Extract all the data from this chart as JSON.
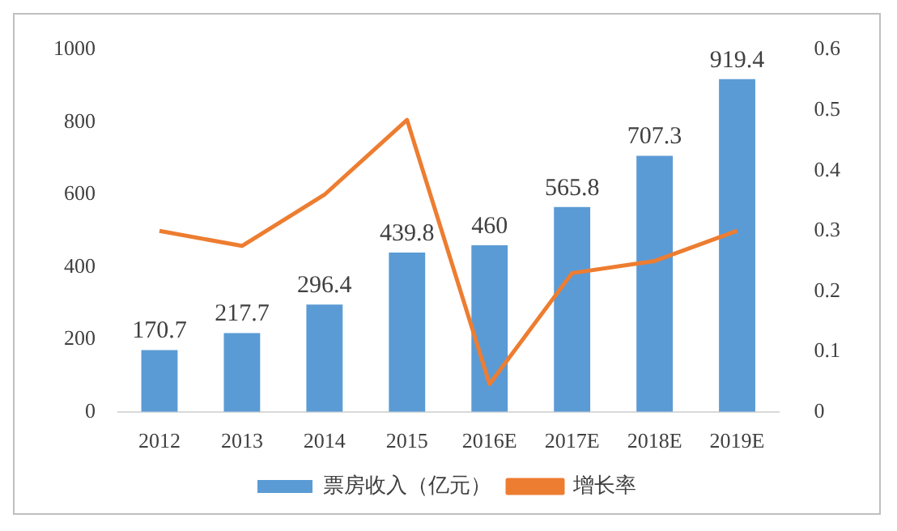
{
  "chart_data": {
    "type": "bar",
    "categories": [
      "2012",
      "2013",
      "2014",
      "2015",
      "2016E",
      "2017E",
      "2018E",
      "2019E"
    ],
    "series": [
      {
        "name": "票房收入（亿元）",
        "color": "#5b9bd5",
        "values": [
          170.7,
          217.7,
          296.4,
          439.8,
          460,
          565.8,
          707.3,
          919.4
        ],
        "value_labels": [
          "170.7",
          "217.7",
          "296.4",
          "439.8",
          "460",
          "565.8",
          "707.3",
          "919.4"
        ]
      },
      {
        "name": "增长率",
        "type": "line",
        "axis": "y2",
        "color": "#ed7d31",
        "values": [
          0.3,
          0.275,
          0.36,
          0.484,
          0.046,
          0.23,
          0.25,
          0.3
        ]
      }
    ],
    "ylim": [
      0,
      1000
    ],
    "yticks": [
      0,
      200,
      400,
      600,
      800,
      1000
    ],
    "y2lim": [
      0,
      0.6
    ],
    "y2ticks": [
      0,
      0.1,
      0.2,
      0.3,
      0.4,
      0.5,
      0.6
    ],
    "grid": false,
    "legend": "bottom",
    "marker": "none"
  }
}
